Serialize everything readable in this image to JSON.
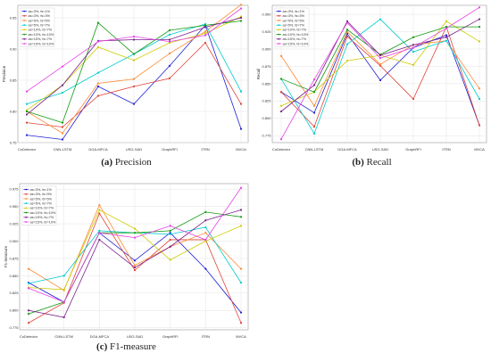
{
  "chart_data": [
    {
      "type": "line",
      "panel_letter": "(a)",
      "caption": "Precision",
      "ylabel": "Precision",
      "xlabel": "",
      "categories": [
        "CoDetector",
        "CNN-LSTM",
        "DGA-MFCA",
        "USG-SAD",
        "GraphRFI",
        "ITRN",
        "MVCA"
      ],
      "ylim": [
        0.75,
        0.97
      ],
      "yticks": [
        0.75,
        0.8,
        0.85,
        0.9,
        0.95
      ],
      "ytick_labels": [
        "0.75",
        "0.80",
        "0.85",
        "0.90",
        "0.95"
      ],
      "legend_position": "top-left",
      "grid": true,
      "series": [
        {
          "name": "as=3%, fs=1%",
          "color": "#1f1fd6",
          "values": [
            0.762,
            0.755,
            0.84,
            0.812,
            0.873,
            0.938,
            0.772
          ]
        },
        {
          "name": "as=3%, fs=3%",
          "color": "#e0453a",
          "values": [
            0.782,
            0.775,
            0.825,
            0.84,
            0.853,
            0.91,
            0.812
          ]
        },
        {
          "name": "as=5%, fs=5%",
          "color": "#ff8a33",
          "values": [
            0.8,
            0.765,
            0.845,
            0.852,
            0.893,
            0.928,
            0.971
          ]
        },
        {
          "name": "as=5%, fs=7%",
          "color": "#00cccc",
          "values": [
            0.812,
            0.83,
            0.862,
            0.892,
            0.923,
            0.94,
            0.832
          ]
        },
        {
          "name": "as=10%, fs=7%",
          "color": "#cccc00",
          "values": [
            0.802,
            0.842,
            0.903,
            0.882,
            0.91,
            0.925,
            0.952
          ]
        },
        {
          "name": "as=10%, fs=10%",
          "color": "#109a10",
          "values": [
            0.8,
            0.782,
            0.942,
            0.892,
            0.93,
            0.938,
            0.945
          ]
        },
        {
          "name": "as=15%, fs=7%",
          "color": "#7a1f8a",
          "values": [
            0.795,
            0.842,
            0.913,
            0.915,
            0.915,
            0.935,
            0.95
          ]
        },
        {
          "name": "as=15%, fs=10%",
          "color": "#e640e6",
          "values": [
            0.832,
            0.872,
            0.912,
            0.92,
            0.912,
            0.922,
            0.965
          ]
        }
      ]
    },
    {
      "type": "line",
      "panel_letter": "(b)",
      "caption": "Recall",
      "ylabel": "Recall",
      "xlabel": "",
      "categories": [
        "CoDetector",
        "CNN-LSTM",
        "DGA-MFCA",
        "USG-SAD",
        "GraphRFI",
        "ITRN",
        "MVCA"
      ],
      "ylim": [
        0.765,
        0.963
      ],
      "yticks": [
        0.775,
        0.8,
        0.825,
        0.85,
        0.875,
        0.9,
        0.925,
        0.95
      ],
      "ytick_labels": [
        "0.775",
        "0.800",
        "0.825",
        "0.850",
        "0.875",
        "0.900",
        "0.925",
        "0.950"
      ],
      "legend_position": "top-left",
      "grid": true,
      "series": [
        {
          "name": "as=3%, fs=1%",
          "color": "#1f1fd6",
          "values": [
            0.838,
            0.808,
            0.922,
            0.855,
            0.902,
            0.92,
            0.79
          ]
        },
        {
          "name": "as=3%, fs=3%",
          "color": "#e0453a",
          "values": [
            0.838,
            0.788,
            0.918,
            0.876,
            0.828,
            0.932,
            0.79
          ]
        },
        {
          "name": "as=5%, fs=5%",
          "color": "#ff8a33",
          "values": [
            0.89,
            0.818,
            0.925,
            0.878,
            0.906,
            0.912,
            0.843
          ]
        },
        {
          "name": "as=5%, fs=7%",
          "color": "#00cccc",
          "values": [
            0.857,
            0.778,
            0.907,
            0.943,
            0.896,
            0.912,
            0.828
          ]
        },
        {
          "name": "as=10%, fs=7%",
          "color": "#cccc00",
          "values": [
            0.818,
            0.838,
            0.883,
            0.891,
            0.877,
            0.94,
            0.911
          ]
        },
        {
          "name": "as=10%, fs=10%",
          "color": "#109a10",
          "values": [
            0.857,
            0.838,
            0.928,
            0.892,
            0.917,
            0.932,
            0.932
          ]
        },
        {
          "name": "as=15%, fs=7%",
          "color": "#7a1f8a",
          "values": [
            0.81,
            0.848,
            0.94,
            0.891,
            0.906,
            0.917,
            0.943
          ]
        },
        {
          "name": "as=15%, fs=10%",
          "color": "#e640e6",
          "values": [
            0.77,
            0.856,
            0.938,
            0.887,
            0.902,
            0.93,
            0.96
          ]
        }
      ]
    },
    {
      "type": "line",
      "panel_letter": "(c)",
      "caption": "F1-measure",
      "ylabel": "F1-measure",
      "xlabel": "",
      "categories": [
        "CoDetector",
        "CNN-LSTM",
        "DGA-MFCA",
        "USG-SAD",
        "GraphRFI",
        "ITRN",
        "MVCA"
      ],
      "ylim": [
        0.772,
        0.983
      ],
      "yticks": [
        0.775,
        0.8,
        0.825,
        0.85,
        0.875,
        0.9,
        0.925,
        0.95,
        0.975
      ],
      "ytick_labels": [
        "0.775",
        "0.800",
        "0.825",
        "0.850",
        "0.875",
        "0.900",
        "0.925",
        "0.950",
        "0.975"
      ],
      "legend_position": "top-left",
      "grid": true,
      "series": [
        {
          "name": "as=3%, fs=1%",
          "color": "#1f1fd6",
          "values": [
            0.84,
            0.812,
            0.912,
            0.872,
            0.912,
            0.86,
            0.797
          ]
        },
        {
          "name": "as=3%, fs=3%",
          "color": "#e0453a",
          "values": [
            0.782,
            0.811,
            0.94,
            0.858,
            0.902,
            0.902,
            0.782
          ]
        },
        {
          "name": "as=5%, fs=5%",
          "color": "#ff8a33",
          "values": [
            0.86,
            0.829,
            0.952,
            0.865,
            0.892,
            0.912,
            0.86
          ]
        },
        {
          "name": "as=5%, fs=7%",
          "color": "#00cccc",
          "values": [
            0.839,
            0.85,
            0.915,
            0.912,
            0.91,
            0.92,
            0.84
          ]
        },
        {
          "name": "as=10%, fs=7%",
          "color": "#cccc00",
          "values": [
            0.833,
            0.83,
            0.945,
            0.918,
            0.873,
            0.9,
            0.922
          ]
        },
        {
          "name": "as=10%, fs=10%",
          "color": "#109a10",
          "values": [
            0.795,
            0.812,
            0.912,
            0.912,
            0.915,
            0.942,
            0.935
          ]
        },
        {
          "name": "as=15%, fs=7%",
          "color": "#7a1f8a",
          "values": [
            0.8,
            0.79,
            0.902,
            0.862,
            0.892,
            0.93,
            0.945
          ]
        },
        {
          "name": "as=15%, fs=10%",
          "color": "#e640e6",
          "values": [
            0.832,
            0.812,
            0.912,
            0.905,
            0.922,
            0.902,
            0.977
          ]
        }
      ]
    }
  ]
}
